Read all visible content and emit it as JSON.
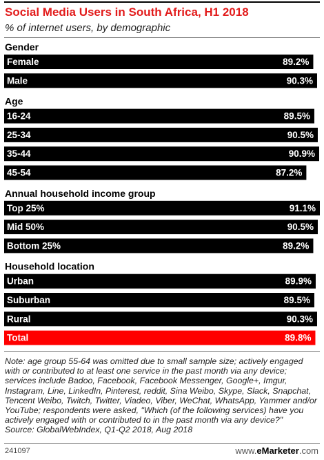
{
  "header": {
    "title": "Social Media Users in South Africa, H1 2018",
    "subtitle": "% of internet users, by demographic"
  },
  "chart_data": {
    "type": "bar",
    "orientation": "horizontal",
    "title": "Social Media Users in South Africa, H1 2018",
    "subtitle": "% of internet users, by demographic",
    "unit": "%",
    "xlim": [
      0,
      91.1
    ],
    "grid": false,
    "legend": "none",
    "colors": {
      "bar": "#000000",
      "highlight": "#ff0000",
      "text": "#ffffff"
    },
    "groups": [
      {
        "name": "Gender",
        "items": [
          {
            "label": "Female",
            "value": 89.2,
            "value_label": "89.2%"
          },
          {
            "label": "Male",
            "value": 90.3,
            "value_label": "90.3%"
          }
        ]
      },
      {
        "name": "Age",
        "items": [
          {
            "label": "16-24",
            "value": 89.5,
            "value_label": "89.5%"
          },
          {
            "label": "25-34",
            "value": 90.5,
            "value_label": "90.5%"
          },
          {
            "label": "35-44",
            "value": 90.9,
            "value_label": "90.9%"
          },
          {
            "label": "45-54",
            "value": 87.2,
            "value_label": "87.2%"
          }
        ]
      },
      {
        "name": "Annual household income group",
        "items": [
          {
            "label": "Top 25%",
            "value": 91.1,
            "value_label": "91.1%"
          },
          {
            "label": "Mid 50%",
            "value": 90.5,
            "value_label": "90.5%"
          },
          {
            "label": "Bottom 25%",
            "value": 89.2,
            "value_label": "89.2%"
          }
        ]
      },
      {
        "name": "Household location",
        "items": [
          {
            "label": "Urban",
            "value": 89.9,
            "value_label": "89.9%"
          },
          {
            "label": "Suburban",
            "value": 89.5,
            "value_label": "89.5%"
          },
          {
            "label": "Rural",
            "value": 90.3,
            "value_label": "90.3%"
          }
        ]
      }
    ],
    "total": {
      "label": "Total",
      "value": 89.8,
      "value_label": "89.8%"
    }
  },
  "footer": {
    "note": "Note: age group 55-64 was omitted due to small sample size; actively engaged with or contributed to at least one service in the past month via any device; services include Badoo, Facebook, Facebook Messenger, Google+, Imgur, Instagram, Line, LinkedIn, Pinterest, reddit, Sina Weibo, Skype, Slack, Snapchat, Tencent Weibo, Twitch, Twitter, Viadeo, Viber, WeChat, WhatsApp, Yammer and/or YouTube; respondents were asked, \"Which (of the following services) have you actively engaged with or contributed to in the past month via any device?\"",
    "source": "Source: GlobalWebIndex, Q1-Q2 2018, Aug 2018",
    "chart_id": "241097",
    "brand_prefix": "www.",
    "brand_name": "eMarketer",
    "brand_suffix": ".com"
  }
}
